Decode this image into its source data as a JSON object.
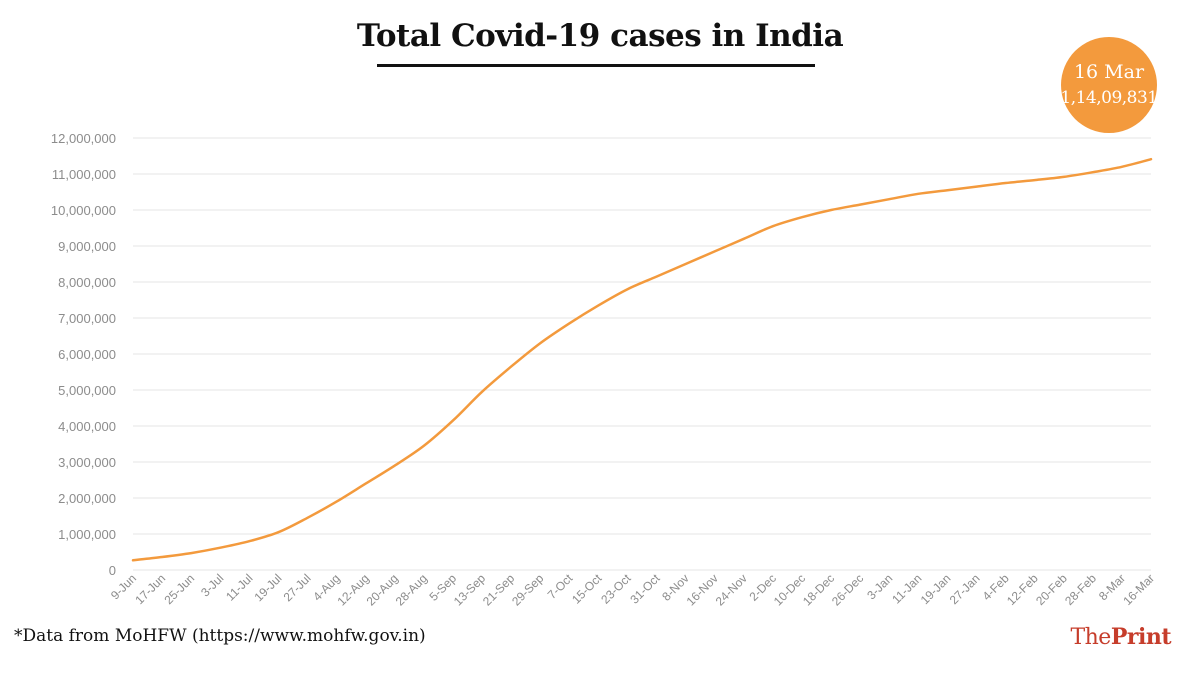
{
  "title": "Total Covid-19 cases in India",
  "callout": {
    "date": "16 Mar",
    "value": "1,14,09,831"
  },
  "source": "*Data from MoHFW (https://www.mohfw.gov.in)",
  "brand": {
    "part1": "The",
    "part2": "Print"
  },
  "colors": {
    "line": "#f39a3d",
    "callout": "#f39a3d",
    "grid": "#e6e6e6",
    "axis_text": "#8c8c8c",
    "brand": "#c63d2b"
  },
  "chart_data": {
    "type": "line",
    "title": "Total Covid-19 cases in India",
    "xlabel": "",
    "ylabel": "",
    "ylim": [
      0,
      12000000
    ],
    "grid": true,
    "yticks": [
      0,
      1000000,
      2000000,
      3000000,
      4000000,
      5000000,
      6000000,
      7000000,
      8000000,
      9000000,
      10000000,
      11000000,
      12000000
    ],
    "ytick_labels": [
      "0",
      "1,000,000",
      "2,000,000",
      "3,000,000",
      "4,000,000",
      "5,000,000",
      "6,000,000",
      "7,000,000",
      "8,000,000",
      "9,000,000",
      "10,000,000",
      "11,000,000",
      "12,000,000"
    ],
    "x_tick_labels": [
      "9-Jun",
      "17-Jun",
      "25-Jun",
      "3-Jul",
      "11-Jul",
      "19-Jul",
      "27-Jul",
      "4-Aug",
      "12-Aug",
      "20-Aug",
      "28-Aug",
      "5-Sep",
      "13-Sep",
      "21-Sep",
      "29-Sep",
      "7-Oct",
      "15-Oct",
      "23-Oct",
      "31-Oct",
      "8-Nov",
      "16-Nov",
      "24-Nov",
      "2-Dec",
      "10-Dec",
      "18-Dec",
      "26-Dec",
      "3-Jan",
      "11-Jan",
      "19-Jan",
      "27-Jan",
      "4-Feb",
      "12-Feb",
      "20-Feb",
      "28-Feb",
      "8-Mar",
      "16-Mar"
    ],
    "series": [
      {
        "values": [
          270000,
          360000,
          470000,
          620000,
          800000,
          1050000,
          1450000,
          1900000,
          2400000,
          2900000,
          3450000,
          4150000,
          4950000,
          5650000,
          6300000,
          6850000,
          7350000,
          7800000,
          8150000,
          8500000,
          8850000,
          9200000,
          9550000,
          9800000,
          10000000,
          10150000,
          10300000,
          10450000,
          10550000,
          10650000,
          10750000,
          10830000,
          10920000,
          11050000,
          11200000,
          11409831
        ]
      }
    ]
  }
}
